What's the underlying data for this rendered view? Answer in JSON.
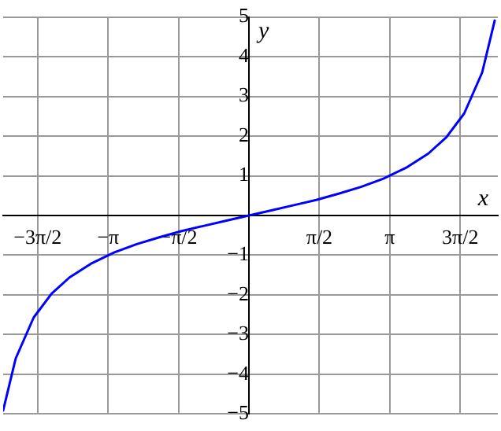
{
  "chart_data": {
    "type": "line",
    "xlabel": "x",
    "ylabel": "y",
    "x": [
      -5.48,
      -5.2,
      -4.8,
      -4.4,
      -4.0,
      -3.5,
      -3.0,
      -2.5,
      -2.0,
      -1.5,
      -1.0,
      -0.5,
      0,
      0.5,
      1.0,
      1.5,
      2.0,
      2.5,
      3.0,
      3.5,
      4.0,
      4.4,
      4.8,
      5.2,
      5.48
    ],
    "series": [
      {
        "color": "#0000ff",
        "values": [
          -4.91,
          -3.6,
          -2.57,
          -1.97,
          -1.56,
          -1.2,
          -0.93,
          -0.72,
          -0.55,
          -0.39,
          -0.26,
          -0.13,
          0,
          0.13,
          0.26,
          0.39,
          0.55,
          0.72,
          0.93,
          1.2,
          1.56,
          1.97,
          2.57,
          3.6,
          4.91
        ]
      }
    ],
    "xlim": [
      -5.48,
      5.55
    ],
    "ylim": [
      -5,
      5
    ],
    "xticks": [
      {
        "value": -4.712,
        "label": "−3π/2"
      },
      {
        "value": -3.1416,
        "label": "−π"
      },
      {
        "value": -1.5708,
        "label": "−π/2"
      },
      {
        "value": 1.5708,
        "label": "π/2"
      },
      {
        "value": 3.1416,
        "label": "π"
      },
      {
        "value": 4.712,
        "label": "3π/2"
      }
    ],
    "yticks": [
      {
        "value": -5,
        "label": "−5"
      },
      {
        "value": -4,
        "label": "−4"
      },
      {
        "value": -3,
        "label": "−3"
      },
      {
        "value": -2,
        "label": "−2"
      },
      {
        "value": -1,
        "label": "−1"
      },
      1,
      2,
      3,
      4,
      5
    ],
    "grid": true,
    "legend": false,
    "marker": "none",
    "line_style": "solid"
  }
}
